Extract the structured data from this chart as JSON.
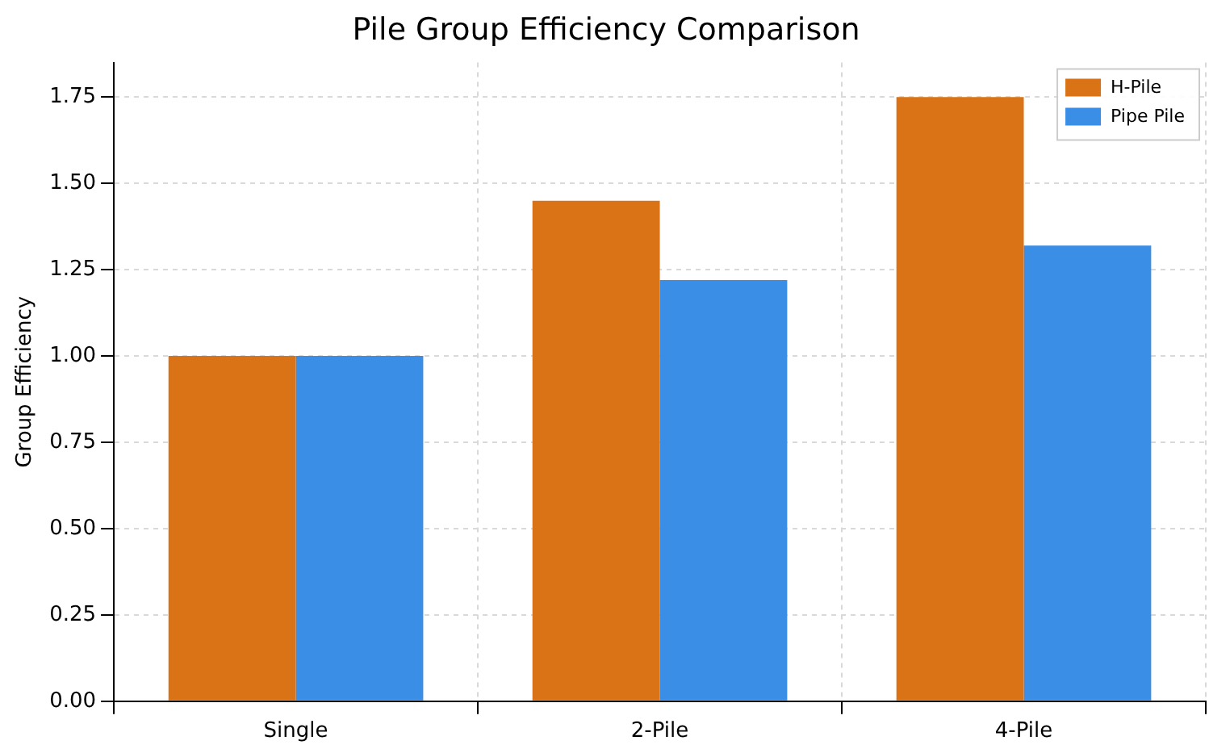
{
  "chart_data": {
    "type": "bar",
    "title": "Pile Group Efficiency Comparison",
    "ylabel": "Group Efficiency",
    "categories": [
      "Single",
      "2-Pile",
      "4-Pile"
    ],
    "series": [
      {
        "name": "H-Pile",
        "color": "#d97316",
        "values": [
          1.0,
          1.45,
          1.75
        ]
      },
      {
        "name": "Pipe Pile",
        "color": "#3a8ee6",
        "values": [
          1.0,
          1.22,
          1.32
        ]
      }
    ],
    "ylim": [
      0,
      1.85
    ],
    "yticks": [
      {
        "value": 0,
        "label": "0.00"
      },
      {
        "value": 0.25,
        "label": "0.25"
      },
      {
        "value": 0.5,
        "label": "0.50"
      },
      {
        "value": 0.75,
        "label": "0.75"
      },
      {
        "value": 1,
        "label": "1.00"
      },
      {
        "value": 1.25,
        "label": "1.25"
      },
      {
        "value": 1.5,
        "label": "1.50"
      },
      {
        "value": 1.75,
        "label": "1.75"
      }
    ],
    "grid": true,
    "legend": "top right"
  }
}
